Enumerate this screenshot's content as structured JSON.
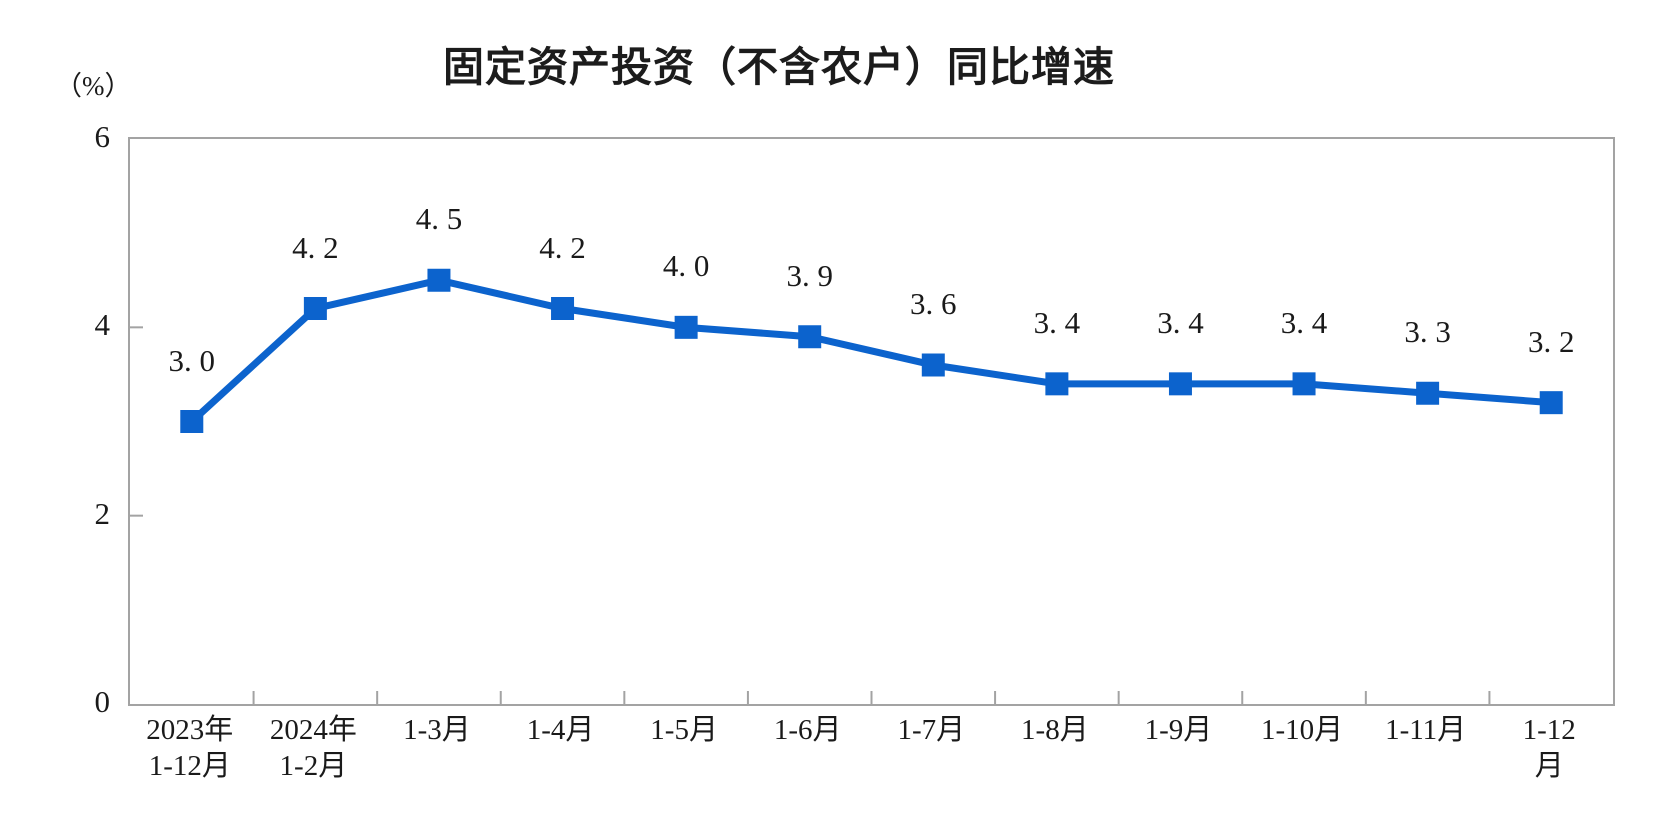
{
  "chart_data": {
    "type": "line",
    "title": "固定资产投资（不含农户）同比增速",
    "ylabel_unit": "（%）",
    "categories": [
      "2023年\n1-12月",
      "2024年\n1-2月",
      "1-3月",
      "1-4月",
      "1-5月",
      "1-6月",
      "1-7月",
      "1-8月",
      "1-9月",
      "1-10月",
      "1-11月",
      "1-12月"
    ],
    "values": [
      3.0,
      4.2,
      4.5,
      4.2,
      4.0,
      3.9,
      3.6,
      3.4,
      3.4,
      3.4,
      3.3,
      3.2
    ],
    "point_labels": [
      "3. 0",
      "4. 2",
      "4. 5",
      "4. 2",
      "4. 0",
      "3. 9",
      "3. 6",
      "3. 4",
      "3. 4",
      "3. 4",
      "3. 3",
      "3. 2"
    ],
    "ylim": [
      0,
      6
    ],
    "yticks": [
      0,
      2,
      4,
      6
    ],
    "grid": false,
    "legend_position": "none",
    "marker": "square",
    "colors": {
      "line": "#0c63cd",
      "marker": "#0c63cd",
      "axis": "#a3a3a3",
      "text": "#1a1a1a"
    }
  }
}
